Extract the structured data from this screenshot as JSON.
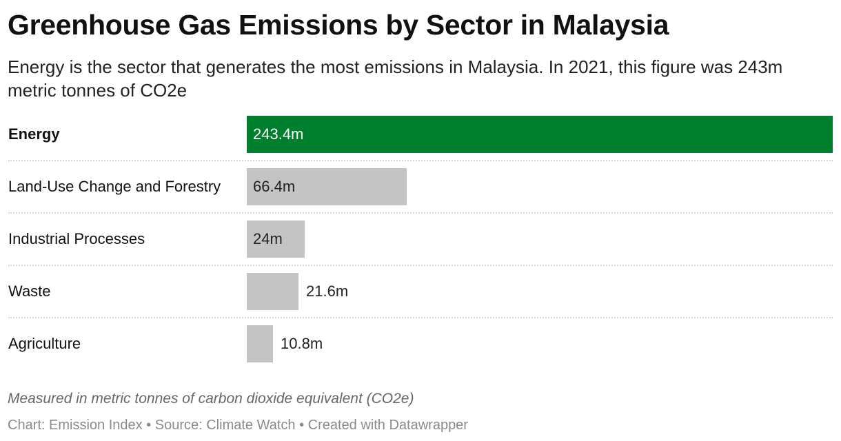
{
  "title": "Greenhouse Gas Emissions by Sector in Malaysia",
  "subtitle": "Energy is the sector that generates the most emissions in Malaysia. In 2021, this figure was 243m metric tonnes of CO2e",
  "note": "Measured in metric tonnes of carbon dioxide equivalent (CO2e)",
  "footer": "Chart: Emission Index • Source: Climate Watch • Created with Datawrapper",
  "colors": {
    "highlight_bar": "#00802e",
    "default_bar": "#c4c4c4",
    "label_inside_highlight": "#ffffff",
    "label_default": "#222222"
  },
  "chart_data": {
    "type": "bar",
    "orientation": "horizontal",
    "categories": [
      "Energy",
      "Land-Use Change and Forestry",
      "Industrial Processes",
      "Waste",
      "Agriculture"
    ],
    "values": [
      243.4,
      66.4,
      24,
      21.6,
      10.8
    ],
    "value_labels": [
      "243.4m",
      "66.4m",
      "24m",
      "21.6m",
      "10.8m"
    ],
    "highlight": "Energy",
    "xlim": [
      0,
      243.4
    ],
    "grid": false,
    "legend": "none"
  }
}
